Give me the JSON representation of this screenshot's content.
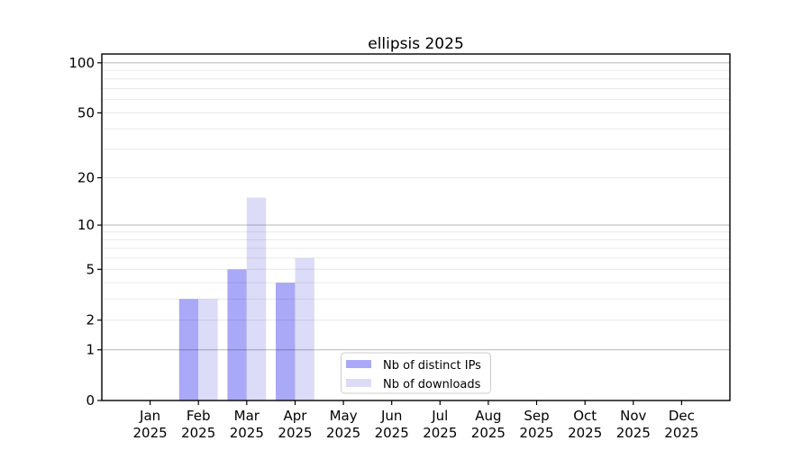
{
  "chart_data": {
    "type": "bar",
    "title": "ellipsis 2025",
    "year_label": "2025",
    "categories": [
      "Jan",
      "Feb",
      "Mar",
      "Apr",
      "May",
      "Jun",
      "Jul",
      "Aug",
      "Sep",
      "Oct",
      "Nov",
      "Dec"
    ],
    "series": [
      {
        "name": "Nb of distinct IPs",
        "color": "#a9a9f7",
        "values": [
          0,
          3,
          5,
          4,
          0,
          0,
          0,
          0,
          0,
          0,
          0,
          0
        ]
      },
      {
        "name": "Nb of downloads",
        "color": "#dcdcf9",
        "values": [
          0,
          3,
          15,
          6,
          0,
          0,
          0,
          0,
          0,
          0,
          0,
          0
        ]
      }
    ],
    "yscale": "log1p",
    "ylim": [
      0,
      113
    ],
    "yticks": [
      0,
      1,
      2,
      5,
      10,
      20,
      50,
      100
    ],
    "major_gridlines": [
      1,
      10,
      100
    ],
    "minor_gridlines": [
      2,
      3,
      4,
      5,
      6,
      7,
      8,
      9,
      20,
      30,
      40,
      50,
      60,
      70,
      80,
      90
    ],
    "grid": true,
    "legend_position": "inside-bottom-center",
    "colors": {
      "major_grid": "rgba(0,0,0,0.25)",
      "minor_grid": "rgba(0,0,0,0.09)",
      "axis": "#000000",
      "legend_border": "#cccccc",
      "legend_background": "#ffffff",
      "background": "#ffffff"
    }
  }
}
